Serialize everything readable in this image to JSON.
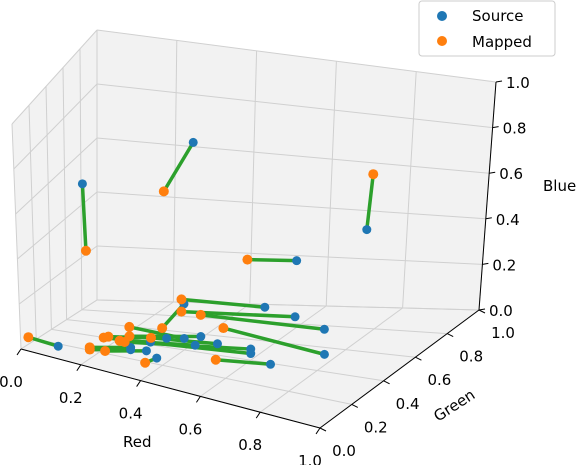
{
  "chart_data": {
    "type": "scatter",
    "subtype": "3d",
    "xlabel": "Red",
    "ylabel": "Green",
    "zlabel": "Blue",
    "xlim": [
      0,
      1
    ],
    "ylim": [
      0,
      1
    ],
    "zlim": [
      0,
      1
    ],
    "ticks": [
      "0.0",
      "0.2",
      "0.4",
      "0.6",
      "0.8",
      "1.0"
    ],
    "grid": true,
    "legend_position": "top-right",
    "legend": [
      "Source",
      "Mapped"
    ],
    "colors": {
      "source": "#1f77b4",
      "mapped": "#ff7f0e",
      "link": "#2ca02c",
      "pane": "#f2f2f2",
      "grid": "#d0d0d0"
    },
    "pairs": [
      {
        "source": [
          0.12,
          0.02,
          0.05
        ],
        "mapped": [
          0.0,
          0.1,
          0.03
        ]
      },
      {
        "source": [
          0.05,
          0.6,
          0.55
        ],
        "mapped": [
          0.07,
          0.55,
          0.3
        ]
      },
      {
        "source": [
          0.3,
          0.8,
          0.7
        ],
        "mapped": [
          0.25,
          0.7,
          0.53
        ]
      },
      {
        "source": [
          0.85,
          0.6,
          0.55
        ],
        "mapped": [
          0.8,
          0.75,
          0.7
        ]
      },
      {
        "source": [
          0.55,
          0.9,
          0.22
        ],
        "mapped": [
          0.45,
          0.8,
          0.25
        ]
      },
      {
        "source": [
          0.5,
          0.8,
          0.06
        ],
        "mapped": [
          0.3,
          0.7,
          0.1
        ]
      },
      {
        "source": [
          0.6,
          0.75,
          0.05
        ],
        "mapped": [
          0.3,
          0.7,
          0.05
        ]
      },
      {
        "source": [
          0.7,
          0.7,
          0.03
        ],
        "mapped": [
          0.4,
          0.55,
          0.1
        ]
      },
      {
        "source": [
          0.4,
          0.4,
          0.2
        ],
        "mapped": [
          0.35,
          0.35,
          0.1
        ]
      },
      {
        "source": [
          0.38,
          0.3,
          0.08
        ],
        "mapped": [
          0.2,
          0.3,
          0.04
        ]
      },
      {
        "source": [
          0.4,
          0.4,
          0.05
        ],
        "mapped": [
          0.25,
          0.35,
          0.08
        ]
      },
      {
        "source": [
          0.45,
          0.4,
          0.07
        ],
        "mapped": [
          0.25,
          0.35,
          0.04
        ]
      },
      {
        "source": [
          0.5,
          0.4,
          0.05
        ],
        "mapped": [
          0.3,
          0.4,
          0.03
        ]
      },
      {
        "source": [
          0.45,
          0.35,
          0.05
        ],
        "mapped": [
          0.25,
          0.25,
          0.05
        ]
      },
      {
        "source": [
          0.33,
          0.3,
          0.05
        ],
        "mapped": [
          0.25,
          0.25,
          0.05
        ]
      },
      {
        "source": [
          0.6,
          0.4,
          0.05
        ],
        "mapped": [
          0.25,
          0.3,
          0.03
        ]
      },
      {
        "source": [
          0.6,
          0.4,
          0.03
        ],
        "mapped": [
          0.2,
          0.25,
          0.05
        ]
      },
      {
        "source": [
          0.3,
          0.2,
          0.05
        ],
        "mapped": [
          0.2,
          0.1,
          0.05
        ]
      },
      {
        "source": [
          0.3,
          0.2,
          0.04
        ],
        "mapped": [
          0.2,
          0.1,
          0.04
        ]
      },
      {
        "source": [
          0.35,
          0.2,
          0.05
        ],
        "mapped": [
          0.25,
          0.1,
          0.05
        ]
      },
      {
        "source": [
          0.4,
          0.15,
          0.05
        ],
        "mapped": [
          0.38,
          0.1,
          0.04
        ]
      },
      {
        "source": [
          0.7,
          0.3,
          0.05
        ],
        "mapped": [
          0.55,
          0.25,
          0.05
        ]
      },
      {
        "source": [
          0.8,
          0.45,
          0.05
        ],
        "mapped": [
          0.5,
          0.45,
          0.1
        ]
      }
    ]
  }
}
